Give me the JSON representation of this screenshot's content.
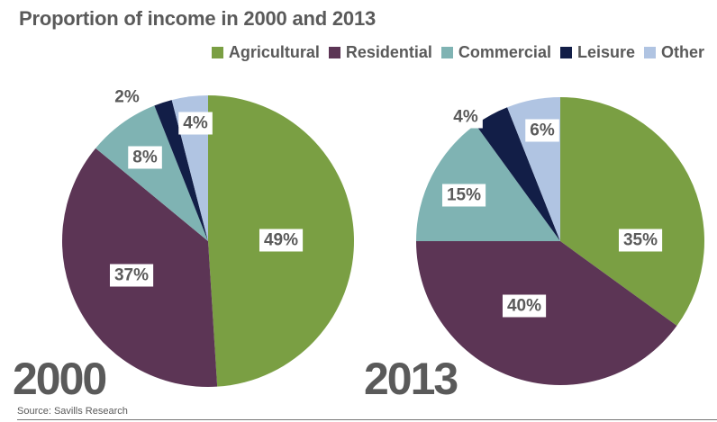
{
  "title": "Proportion of income in 2000 and 2013",
  "source": "Source: Savills Research",
  "legend": [
    {
      "label": "Agricultural",
      "color": "#7a9f43"
    },
    {
      "label": "Residential",
      "color": "#5c3555"
    },
    {
      "label": "Commercial",
      "color": "#7fb3b3"
    },
    {
      "label": "Leisure",
      "color": "#121e47"
    },
    {
      "label": "Other",
      "color": "#b0c4e2"
    }
  ],
  "chart_data": [
    {
      "type": "pie",
      "title": "2000",
      "categories": [
        "Agricultural",
        "Residential",
        "Commercial",
        "Leisure",
        "Other"
      ],
      "values": [
        49,
        37,
        8,
        2,
        4
      ],
      "labels": [
        "49%",
        "37%",
        "8%",
        "2%",
        "4%"
      ],
      "start": "12 o'clock, clockwise",
      "legend_position": "top-right"
    },
    {
      "type": "pie",
      "title": "2013",
      "categories": [
        "Agricultural",
        "Residential",
        "Commercial",
        "Leisure",
        "Other"
      ],
      "values": [
        35,
        40,
        15,
        4,
        6
      ],
      "labels": [
        "35%",
        "40%",
        "15%",
        "4%",
        "6%"
      ],
      "start": "12 o'clock, clockwise",
      "legend_position": "top-right"
    }
  ]
}
